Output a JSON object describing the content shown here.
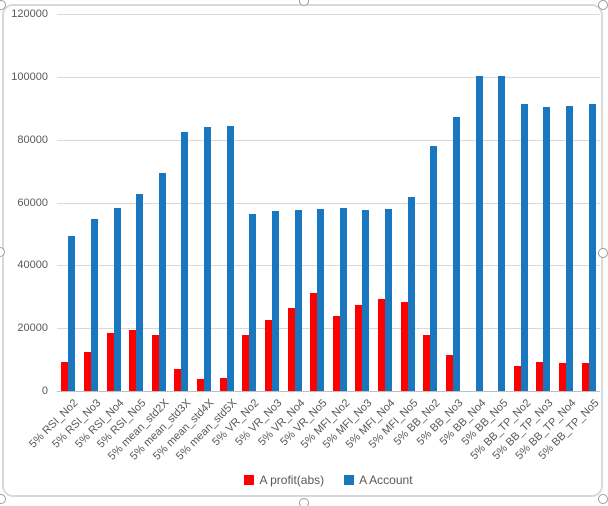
{
  "chart_data": {
    "type": "bar",
    "title": "",
    "xlabel": "",
    "ylabel": "",
    "ylim": [
      0,
      120000
    ],
    "yticks": [
      0,
      20000,
      40000,
      60000,
      80000,
      100000,
      120000
    ],
    "ytick_labels": [
      "0",
      "20000",
      "40000",
      "60000",
      "80000",
      "100000",
      "120000"
    ],
    "grid": true,
    "legend_position": "bottom",
    "categories": [
      "5% RSI_No2",
      "5% RSI_No3",
      "5% RSI_No4",
      "5% RSI_No5",
      "5% mean_std2X",
      "5% mean_std3X",
      "5% mean_std4X",
      "5% mean_std5X",
      "5% VR_No2",
      "5% VR_No3",
      "5% VR_No4",
      "5% VR_No5",
      "5% MFI_No2",
      "5% MFI_No3",
      "5% MFI_No4",
      "5% MFI_No5",
      "5% BB_No2",
      "5% BB_No3",
      "5% BB_No4",
      "5% BB_No5",
      "5% BB_TP_No2",
      "5% BB_TP_No3",
      "5% BB_TP_No4",
      "5% BB_TP_No5"
    ],
    "series": [
      {
        "name": "A profit(abs)",
        "color": "#FF0000",
        "values": [
          9100,
          12400,
          18600,
          19300,
          17700,
          7100,
          3700,
          4100,
          17800,
          22500,
          26300,
          31100,
          23800,
          27500,
          29200,
          28300,
          17900,
          11500,
          0,
          0,
          8000,
          9100,
          9000,
          8800
        ]
      },
      {
        "name": "A Account",
        "color": "#1877BE",
        "values": [
          49300,
          54700,
          58200,
          62600,
          69300,
          82400,
          84100,
          84500,
          56300,
          57200,
          57500,
          57900,
          58200,
          57500,
          57900,
          61700,
          77900,
          87300,
          100200,
          100200,
          91300,
          90500,
          90600,
          91200
        ]
      }
    ],
    "colors": {
      "gridline": "#D9D9D9",
      "axis_line": "#BFBFBF",
      "tick_text": "#595959",
      "chart_border": "#D9D9D9",
      "selection_handle": "#9E9E9E",
      "background": "#FFFFFF"
    }
  }
}
